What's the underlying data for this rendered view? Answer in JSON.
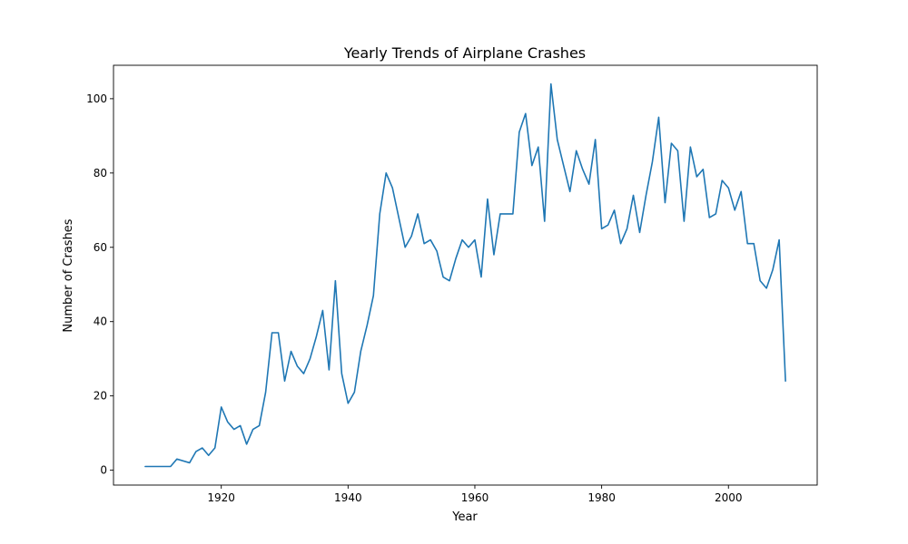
{
  "chart_data": {
    "type": "line",
    "title": "Yearly Trends of Airplane Crashes",
    "xlabel": "Year",
    "ylabel": "Number of Crashes",
    "xlim": [
      1903,
      2014
    ],
    "ylim": [
      -4,
      109
    ],
    "xticks": [
      1920,
      1940,
      1960,
      1980,
      2000
    ],
    "yticks": [
      0,
      20,
      40,
      60,
      80,
      100
    ],
    "grid": false,
    "line_color": "#1f77b4",
    "series": [
      {
        "x": [
          1908,
          1909,
          1910,
          1911,
          1912,
          1913,
          1915,
          1916,
          1917,
          1918,
          1919,
          1920,
          1921,
          1922,
          1923,
          1924,
          1925,
          1926,
          1927,
          1928,
          1929,
          1930,
          1931,
          1932,
          1933,
          1934,
          1935,
          1936,
          1937,
          1938,
          1939,
          1940,
          1941,
          1942,
          1943,
          1944,
          1945,
          1946,
          1947,
          1948,
          1949,
          1950,
          1951,
          1952,
          1953,
          1954,
          1955,
          1956,
          1957,
          1958,
          1959,
          1960,
          1961,
          1962,
          1963,
          1964,
          1965,
          1966,
          1967,
          1968,
          1969,
          1970,
          1971,
          1972,
          1973,
          1974,
          1975,
          1976,
          1977,
          1978,
          1979,
          1980,
          1981,
          1982,
          1983,
          1984,
          1985,
          1986,
          1987,
          1988,
          1989,
          1990,
          1991,
          1992,
          1993,
          1994,
          1995,
          1996,
          1997,
          1998,
          1999,
          2000,
          2001,
          2002,
          2003,
          2004,
          2005,
          2006,
          2007,
          2008,
          2009
        ],
        "values": [
          1,
          1,
          1,
          1,
          1,
          3,
          2,
          5,
          6,
          4,
          6,
          17,
          13,
          11,
          12,
          7,
          11,
          12,
          21,
          37,
          37,
          24,
          32,
          28,
          26,
          30,
          36,
          43,
          27,
          51,
          26,
          18,
          21,
          32,
          39,
          47,
          69,
          80,
          76,
          68,
          60,
          63,
          69,
          61,
          62,
          59,
          52,
          51,
          57,
          62,
          60,
          62,
          52,
          73,
          58,
          69,
          69,
          69,
          91,
          96,
          82,
          87,
          67,
          104,
          89,
          82,
          75,
          86,
          81,
          77,
          89,
          65,
          66,
          70,
          61,
          65,
          74,
          64,
          74,
          83,
          95,
          72,
          88,
          86,
          67,
          87,
          79,
          81,
          68,
          69,
          78,
          76,
          70,
          75,
          61,
          61,
          51,
          49,
          54,
          62,
          24
        ]
      }
    ]
  }
}
